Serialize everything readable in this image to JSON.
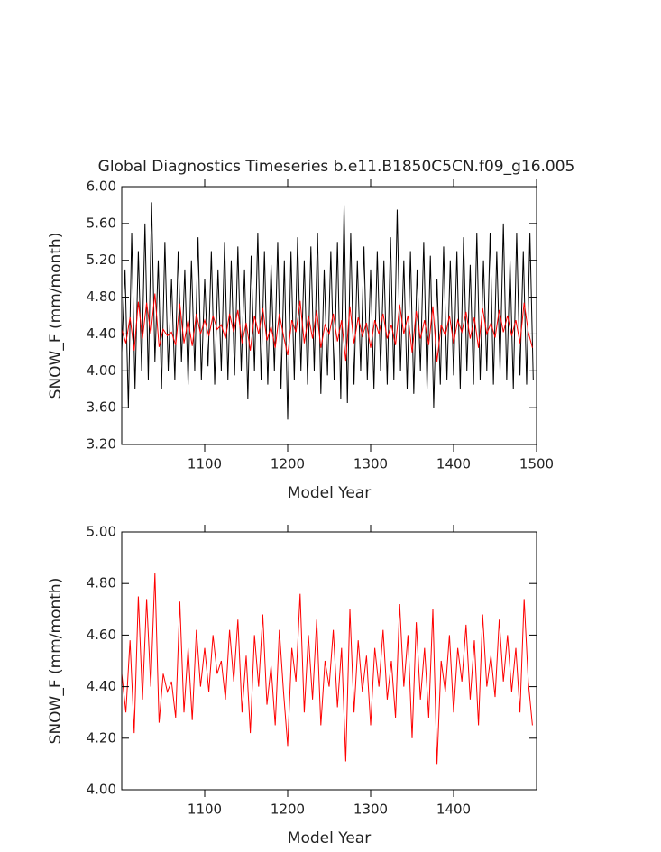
{
  "chart_data": [
    {
      "type": "line",
      "title": "Global Diagnostics Timeseries b.e11.B1850C5CN.f09_g16.005",
      "xlabel": "Model Year",
      "ylabel": "SNOW_F (mm/month)",
      "xlim": [
        1000,
        1500
      ],
      "xticks": [
        1100,
        1200,
        1300,
        1400,
        1500
      ],
      "ylim": [
        3.2,
        6.0
      ],
      "yticks": [
        {
          "value": 3.2,
          "label": "3.20"
        },
        {
          "value": 3.6,
          "label": "3.60"
        },
        {
          "value": 4.0,
          "label": "4.00"
        },
        {
          "value": 4.4,
          "label": "4.40"
        },
        {
          "value": 4.8,
          "label": "4.80"
        },
        {
          "value": 5.2,
          "label": "5.20"
        },
        {
          "value": 5.6,
          "label": "5.60"
        },
        {
          "value": 6.0,
          "label": "6.00"
        }
      ],
      "series": [
        {
          "color": "#000000",
          "x": [
            1000,
            1004,
            1008,
            1012,
            1016,
            1020,
            1024,
            1028,
            1032,
            1036,
            1040,
            1044,
            1048,
            1052,
            1056,
            1060,
            1064,
            1068,
            1072,
            1076,
            1080,
            1084,
            1088,
            1092,
            1096,
            1100,
            1104,
            1108,
            1112,
            1116,
            1120,
            1124,
            1128,
            1132,
            1136,
            1140,
            1144,
            1148,
            1152,
            1156,
            1160,
            1164,
            1168,
            1172,
            1176,
            1180,
            1184,
            1188,
            1192,
            1196,
            1200,
            1204,
            1208,
            1212,
            1216,
            1220,
            1224,
            1228,
            1232,
            1236,
            1240,
            1244,
            1248,
            1252,
            1256,
            1260,
            1264,
            1268,
            1272,
            1276,
            1280,
            1284,
            1288,
            1292,
            1296,
            1300,
            1304,
            1308,
            1312,
            1316,
            1320,
            1324,
            1328,
            1332,
            1336,
            1340,
            1344,
            1348,
            1352,
            1356,
            1360,
            1364,
            1368,
            1372,
            1376,
            1380,
            1384,
            1388,
            1392,
            1396,
            1400,
            1404,
            1408,
            1412,
            1416,
            1420,
            1424,
            1428,
            1432,
            1436,
            1440,
            1444,
            1448,
            1452,
            1456,
            1460,
            1464,
            1468,
            1472,
            1476,
            1480,
            1484,
            1488,
            1492,
            1496
          ],
          "values": [
            4.2,
            5.1,
            3.6,
            5.5,
            3.8,
            5.3,
            4.0,
            5.6,
            3.9,
            5.83,
            4.1,
            5.2,
            3.8,
            5.4,
            4.0,
            5.0,
            3.9,
            5.3,
            4.1,
            5.1,
            3.85,
            5.2,
            4.0,
            5.45,
            3.9,
            5.0,
            4.05,
            5.3,
            3.85,
            5.1,
            4.0,
            5.4,
            3.9,
            5.2,
            3.95,
            5.35,
            4.0,
            5.1,
            3.7,
            5.25,
            4.0,
            5.5,
            3.9,
            5.3,
            3.85,
            5.15,
            4.0,
            5.4,
            3.8,
            5.2,
            3.47,
            5.3,
            3.9,
            5.45,
            4.0,
            5.2,
            3.85,
            5.35,
            4.0,
            5.5,
            3.75,
            5.1,
            3.95,
            5.3,
            3.9,
            5.4,
            3.7,
            5.8,
            3.65,
            5.5,
            3.85,
            5.2,
            4.0,
            5.35,
            3.9,
            5.1,
            3.8,
            5.3,
            4.0,
            5.2,
            3.85,
            5.45,
            3.9,
            5.75,
            4.0,
            5.2,
            3.8,
            5.3,
            3.75,
            5.1,
            4.0,
            5.4,
            3.8,
            5.25,
            3.6,
            5.0,
            3.85,
            5.35,
            3.9,
            5.2,
            3.95,
            5.3,
            3.8,
            5.45,
            4.0,
            5.15,
            3.85,
            5.5,
            3.9,
            5.2,
            4.0,
            5.5,
            3.85,
            5.3,
            4.0,
            5.6,
            3.9,
            5.2,
            3.8,
            5.5,
            3.95,
            5.3,
            3.85,
            5.5,
            3.9
          ]
        },
        {
          "color": "#ff0000",
          "x": [
            1000,
            1005,
            1010,
            1015,
            1020,
            1025,
            1030,
            1035,
            1040,
            1045,
            1050,
            1055,
            1060,
            1065,
            1070,
            1075,
            1080,
            1085,
            1090,
            1095,
            1100,
            1105,
            1110,
            1115,
            1120,
            1125,
            1130,
            1135,
            1140,
            1145,
            1150,
            1155,
            1160,
            1165,
            1170,
            1175,
            1180,
            1185,
            1190,
            1195,
            1200,
            1205,
            1210,
            1215,
            1220,
            1225,
            1230,
            1235,
            1240,
            1245,
            1250,
            1255,
            1260,
            1265,
            1270,
            1275,
            1280,
            1285,
            1290,
            1295,
            1300,
            1305,
            1310,
            1315,
            1320,
            1325,
            1330,
            1335,
            1340,
            1345,
            1350,
            1355,
            1360,
            1365,
            1370,
            1375,
            1380,
            1385,
            1390,
            1395,
            1400,
            1405,
            1410,
            1415,
            1420,
            1425,
            1430,
            1435,
            1440,
            1445,
            1450,
            1455,
            1460,
            1465,
            1470,
            1475,
            1480,
            1485,
            1490,
            1495
          ],
          "values": [
            4.45,
            4.3,
            4.58,
            4.22,
            4.75,
            4.35,
            4.74,
            4.4,
            4.84,
            4.26,
            4.45,
            4.38,
            4.42,
            4.28,
            4.73,
            4.3,
            4.55,
            4.27,
            4.62,
            4.4,
            4.55,
            4.38,
            4.6,
            4.45,
            4.5,
            4.35,
            4.62,
            4.42,
            4.66,
            4.3,
            4.52,
            4.22,
            4.6,
            4.4,
            4.68,
            4.33,
            4.48,
            4.25,
            4.62,
            4.38,
            4.17,
            4.55,
            4.42,
            4.76,
            4.3,
            4.6,
            4.35,
            4.66,
            4.25,
            4.5,
            4.4,
            4.62,
            4.32,
            4.55,
            4.11,
            4.7,
            4.3,
            4.58,
            4.38,
            4.52,
            4.25,
            4.55,
            4.4,
            4.62,
            4.35,
            4.5,
            4.28,
            4.72,
            4.4,
            4.6,
            4.2,
            4.65,
            4.35,
            4.55,
            4.28,
            4.7,
            4.1,
            4.5,
            4.38,
            4.6,
            4.3,
            4.55,
            4.42,
            4.64,
            4.35,
            4.58,
            4.25,
            4.68,
            4.4,
            4.52,
            4.36,
            4.66,
            4.42,
            4.6,
            4.38,
            4.55,
            4.3,
            4.74,
            4.42,
            4.25
          ]
        }
      ]
    },
    {
      "type": "line",
      "xlabel": "Model Year",
      "ylabel": "SNOW_F (mm/month)",
      "xlim": [
        1000,
        1500
      ],
      "xticks": [
        1100,
        1200,
        1300,
        1400
      ],
      "ylim": [
        4.0,
        5.0
      ],
      "yticks": [
        {
          "value": 4.0,
          "label": "4.00"
        },
        {
          "value": 4.2,
          "label": "4.20"
        },
        {
          "value": 4.4,
          "label": "4.40"
        },
        {
          "value": 4.6,
          "label": "4.60"
        },
        {
          "value": 4.8,
          "label": "4.80"
        },
        {
          "value": 5.0,
          "label": "5.00"
        }
      ],
      "series": [
        {
          "color": "#ff0000",
          "x": [
            1000,
            1005,
            1010,
            1015,
            1020,
            1025,
            1030,
            1035,
            1040,
            1045,
            1050,
            1055,
            1060,
            1065,
            1070,
            1075,
            1080,
            1085,
            1090,
            1095,
            1100,
            1105,
            1110,
            1115,
            1120,
            1125,
            1130,
            1135,
            1140,
            1145,
            1150,
            1155,
            1160,
            1165,
            1170,
            1175,
            1180,
            1185,
            1190,
            1195,
            1200,
            1205,
            1210,
            1215,
            1220,
            1225,
            1230,
            1235,
            1240,
            1245,
            1250,
            1255,
            1260,
            1265,
            1270,
            1275,
            1280,
            1285,
            1290,
            1295,
            1300,
            1305,
            1310,
            1315,
            1320,
            1325,
            1330,
            1335,
            1340,
            1345,
            1350,
            1355,
            1360,
            1365,
            1370,
            1375,
            1380,
            1385,
            1390,
            1395,
            1400,
            1405,
            1410,
            1415,
            1420,
            1425,
            1430,
            1435,
            1440,
            1445,
            1450,
            1455,
            1460,
            1465,
            1470,
            1475,
            1480,
            1485,
            1490,
            1495
          ],
          "values": [
            4.45,
            4.3,
            4.58,
            4.22,
            4.75,
            4.35,
            4.74,
            4.4,
            4.84,
            4.26,
            4.45,
            4.38,
            4.42,
            4.28,
            4.73,
            4.3,
            4.55,
            4.27,
            4.62,
            4.4,
            4.55,
            4.38,
            4.6,
            4.45,
            4.5,
            4.35,
            4.62,
            4.42,
            4.66,
            4.3,
            4.52,
            4.22,
            4.6,
            4.4,
            4.68,
            4.33,
            4.48,
            4.25,
            4.62,
            4.38,
            4.17,
            4.55,
            4.42,
            4.76,
            4.3,
            4.6,
            4.35,
            4.66,
            4.25,
            4.5,
            4.4,
            4.62,
            4.32,
            4.55,
            4.11,
            4.7,
            4.3,
            4.58,
            4.38,
            4.52,
            4.25,
            4.55,
            4.4,
            4.62,
            4.35,
            4.5,
            4.28,
            4.72,
            4.4,
            4.6,
            4.2,
            4.65,
            4.35,
            4.55,
            4.28,
            4.7,
            4.1,
            4.5,
            4.38,
            4.6,
            4.3,
            4.55,
            4.42,
            4.64,
            4.35,
            4.58,
            4.25,
            4.68,
            4.4,
            4.52,
            4.36,
            4.66,
            4.42,
            4.6,
            4.38,
            4.55,
            4.3,
            4.74,
            4.42,
            4.25
          ]
        }
      ]
    }
  ]
}
